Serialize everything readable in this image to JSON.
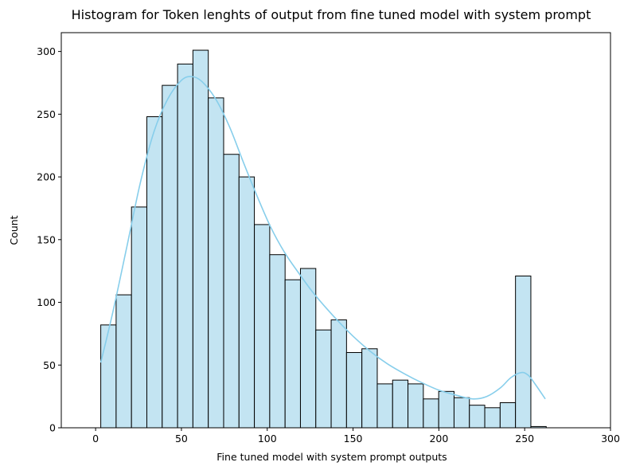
{
  "chart_data": {
    "type": "histogram",
    "title": "Histogram for Token lenghts of output from fine tuned model with system prompt",
    "xlabel": "Fine tuned model with system prompt outputs",
    "ylabel": "Count",
    "xlim": [
      -20,
      300
    ],
    "ylim": [
      0,
      315
    ],
    "xticks": [
      0,
      50,
      100,
      150,
      200,
      250,
      300
    ],
    "yticks": [
      0,
      50,
      100,
      150,
      200,
      250,
      300
    ],
    "bin_start": 3,
    "bin_width": 8.95,
    "counts": [
      82,
      106,
      176,
      248,
      273,
      290,
      301,
      263,
      218,
      200,
      162,
      138,
      118,
      127,
      78,
      86,
      60,
      63,
      35,
      38,
      35,
      23,
      29,
      24,
      18,
      16,
      20,
      121,
      1
    ],
    "kde": [
      [
        3,
        52
      ],
      [
        10,
        92
      ],
      [
        18,
        143
      ],
      [
        26,
        195
      ],
      [
        34,
        236
      ],
      [
        42,
        262
      ],
      [
        50,
        277
      ],
      [
        56,
        280
      ],
      [
        62,
        276
      ],
      [
        70,
        262
      ],
      [
        78,
        240
      ],
      [
        86,
        212
      ],
      [
        94,
        185
      ],
      [
        102,
        160
      ],
      [
        110,
        140
      ],
      [
        118,
        124
      ],
      [
        126,
        109
      ],
      [
        134,
        96
      ],
      [
        142,
        84
      ],
      [
        150,
        73
      ],
      [
        160,
        61
      ],
      [
        170,
        51
      ],
      [
        180,
        43
      ],
      [
        190,
        36
      ],
      [
        200,
        30
      ],
      [
        210,
        26
      ],
      [
        220,
        23
      ],
      [
        228,
        25
      ],
      [
        236,
        32
      ],
      [
        242,
        40
      ],
      [
        248,
        44
      ],
      [
        252,
        42
      ],
      [
        256,
        35
      ],
      [
        262,
        23
      ]
    ],
    "bar_fill": "#c3e4f2",
    "bar_edge": "#000000",
    "kde_color": "#87ceeb",
    "grid": false
  }
}
